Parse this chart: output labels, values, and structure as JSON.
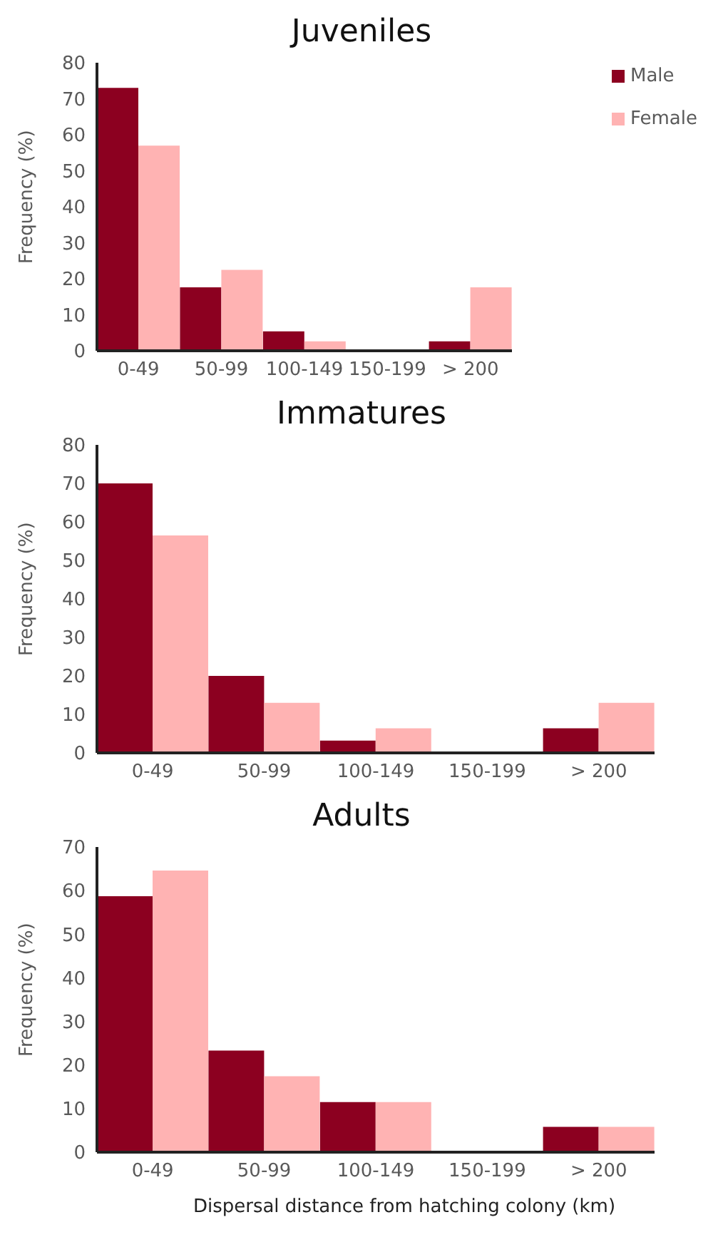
{
  "chart_data": [
    {
      "type": "bar",
      "title": "Juveniles",
      "ylabel": "Frequency (%)",
      "categories": [
        "0-49",
        "50-99",
        "100-149",
        "150-199",
        "> 200"
      ],
      "ylim": [
        0,
        80
      ],
      "yticks": [
        0,
        10,
        20,
        30,
        40,
        50,
        60,
        70,
        80
      ],
      "grid": false,
      "legend": "top right",
      "series": [
        {
          "name": "Male",
          "color": "#8c0020",
          "values": [
            73,
            17.6,
            5.4,
            0,
            2.6
          ]
        },
        {
          "name": "Female",
          "color": "#ffb3b3",
          "values": [
            57,
            22.5,
            2.6,
            0,
            17.6
          ]
        }
      ]
    },
    {
      "type": "bar",
      "title": "Immatures",
      "ylabel": "Frequency (%)",
      "categories": [
        "0-49",
        "50-99",
        "100-149",
        "150-199",
        "> 200"
      ],
      "ylim": [
        0,
        80
      ],
      "yticks": [
        0,
        10,
        20,
        30,
        40,
        50,
        60,
        70,
        80
      ],
      "grid": false,
      "series": [
        {
          "color": "#8c0020",
          "values": [
            70,
            20,
            3.2,
            0,
            6.4
          ]
        },
        {
          "color": "#ffb3b3",
          "values": [
            56.5,
            13,
            6.4,
            0,
            13
          ]
        }
      ]
    },
    {
      "type": "bar",
      "title": "Adults",
      "ylabel": "Frequency (%)",
      "xlabel": "Dispersal distance from hatching colony (km)",
      "categories": [
        "0-49",
        "50-99",
        "100-149",
        "150-199",
        "> 200"
      ],
      "ylim": [
        0,
        70
      ],
      "yticks": [
        0,
        10,
        20,
        30,
        40,
        50,
        60,
        70
      ],
      "grid": false,
      "series": [
        {
          "color": "#8c0020",
          "values": [
            58.7,
            23.3,
            11.5,
            0,
            5.8
          ]
        },
        {
          "color": "#ffb3b3",
          "values": [
            64.6,
            17.4,
            11.5,
            0,
            5.8
          ]
        }
      ]
    }
  ]
}
